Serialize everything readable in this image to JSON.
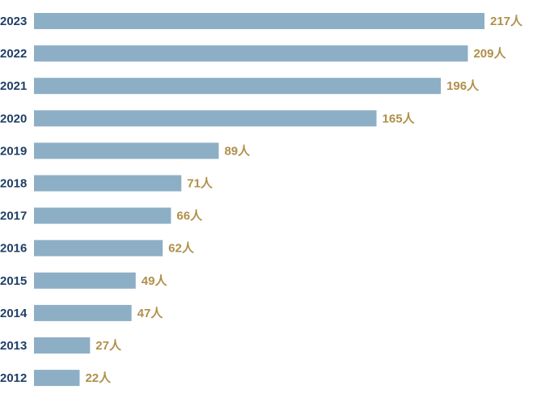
{
  "chart_data": {
    "type": "bar",
    "orientation": "horizontal",
    "categories": [
      "2023",
      "2022",
      "2021",
      "2020",
      "2019",
      "2018",
      "2017",
      "2016",
      "2015",
      "2014",
      "2013",
      "2012"
    ],
    "values": [
      217,
      209,
      196,
      165,
      89,
      71,
      66,
      62,
      49,
      47,
      27,
      22
    ],
    "value_labels": [
      "217人",
      "209人",
      "196人",
      "165人",
      "89人",
      "71人",
      "66人",
      "62人",
      "49人",
      "47人",
      "27人",
      "22人"
    ],
    "title": "",
    "xlabel": "",
    "ylabel": "",
    "xlim": [
      0,
      217
    ],
    "grid": false,
    "legend": "none"
  },
  "colors": {
    "bar": "#8dafc6",
    "year_label": "#1f3f66",
    "value_label": "#b08f4a",
    "axis": "#ffffff"
  }
}
